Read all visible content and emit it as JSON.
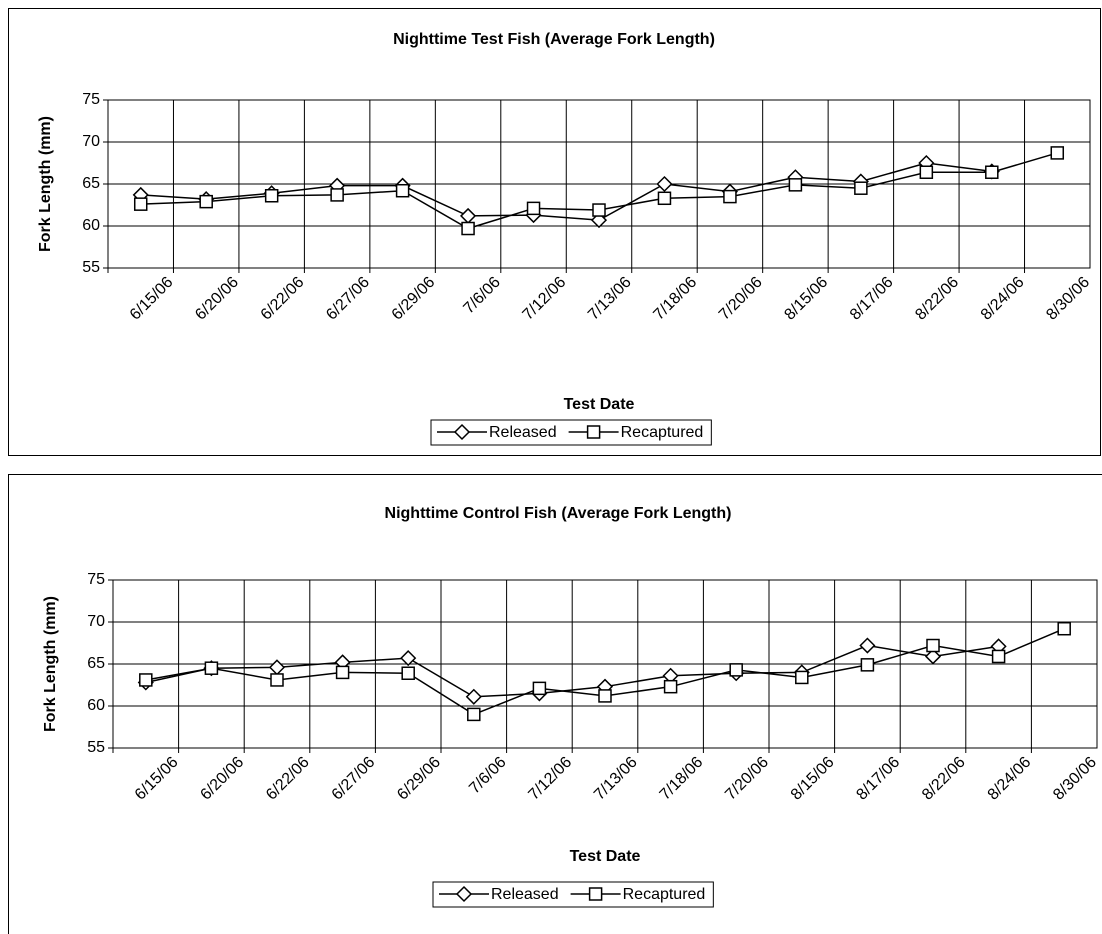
{
  "chart_data": [
    {
      "type": "line",
      "title": "Nighttime Test Fish (Average Fork Length)",
      "x_label": "Test Date",
      "y_label": "Fork Length (mm)",
      "categories": [
        "6/15/06",
        "6/20/06",
        "6/22/06",
        "6/27/06",
        "6/29/06",
        "7/6/06",
        "7/12/06",
        "7/13/06",
        "7/18/06",
        "7/20/06",
        "8/15/06",
        "8/17/06",
        "8/22/06",
        "8/24/06",
        "8/30/06"
      ],
      "series": [
        {
          "name": "Released",
          "color": "#000000",
          "marker": "diamond",
          "values": [
            63.7,
            63.2,
            63.9,
            64.8,
            64.8,
            61.2,
            61.3,
            60.7,
            65.0,
            64.1,
            65.8,
            65.3,
            67.5,
            66.5,
            null
          ]
        },
        {
          "name": "Recaptured",
          "color": "#000000",
          "marker": "square",
          "values": [
            62.6,
            62.9,
            63.6,
            63.7,
            64.2,
            59.7,
            62.1,
            61.9,
            63.3,
            63.5,
            64.9,
            64.5,
            66.4,
            66.4,
            68.7
          ]
        }
      ],
      "ylim": [
        55,
        75
      ],
      "yticks": [
        55,
        60,
        65,
        70,
        75
      ],
      "grid": true,
      "legend": "bottom"
    },
    {
      "type": "line",
      "title": "Nighttime Control Fish (Average Fork Length)",
      "x_label": "Test Date",
      "y_label": "Fork Length (mm)",
      "categories": [
        "6/15/06",
        "6/20/06",
        "6/22/06",
        "6/27/06",
        "6/29/06",
        "7/6/06",
        "7/12/06",
        "7/13/06",
        "7/18/06",
        "7/20/06",
        "8/15/06",
        "8/17/06",
        "8/22/06",
        "8/24/06",
        "8/30/06"
      ],
      "series": [
        {
          "name": "Released",
          "color": "#000000",
          "marker": "diamond",
          "values": [
            62.8,
            64.5,
            64.6,
            65.2,
            65.7,
            61.1,
            61.5,
            62.3,
            63.6,
            63.9,
            64.0,
            67.2,
            65.9,
            67.1,
            null
          ]
        },
        {
          "name": "Recaptured",
          "color": "#000000",
          "marker": "square",
          "values": [
            63.1,
            64.5,
            63.1,
            64.0,
            63.9,
            59.0,
            62.1,
            61.2,
            62.3,
            64.3,
            63.4,
            64.9,
            67.2,
            65.9,
            69.2
          ]
        }
      ],
      "ylim": [
        55,
        75
      ],
      "yticks": [
        55,
        60,
        65,
        70,
        75
      ],
      "grid": true,
      "legend": "bottom"
    }
  ]
}
